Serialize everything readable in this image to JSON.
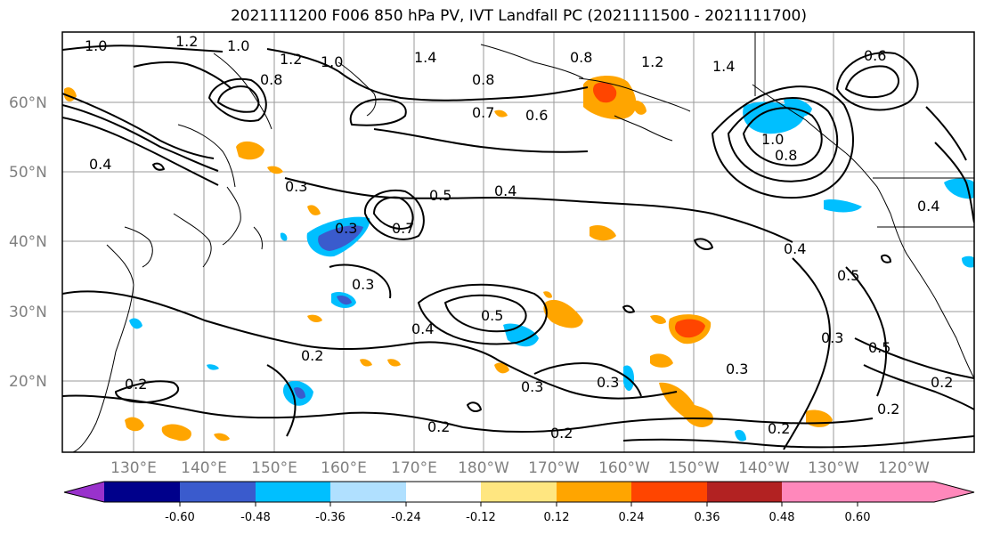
{
  "title": "2021111200 F006 850 hPa PV, IVT Landfall PC (2021111500 - 2021111700)",
  "lat_labels": [
    "60°N",
    "50°N",
    "40°N",
    "30°N",
    "20°N"
  ],
  "lon_labels": [
    "130°E",
    "140°E",
    "150°E",
    "160°E",
    "170°E",
    "180°W",
    "170°W",
    "160°W",
    "150°W",
    "140°W",
    "130°W",
    "120°W"
  ],
  "contour_labels": [
    "1.0",
    "1.2",
    "1.0",
    "1.2",
    "1.0",
    "0.8",
    "1.4",
    "0.8",
    "0.7",
    "0.6",
    "0.8",
    "0.4",
    "0.3",
    "0.5",
    "0.7",
    "0.3",
    "0.4",
    "0.5",
    "0.3",
    "0.2",
    "0.4",
    "0.2",
    "0.2",
    "0.3",
    "0.3",
    "0.2",
    "0.2",
    "1.4",
    "1.0",
    "0.8",
    "0.4",
    "0.4",
    "0.5",
    "0.3",
    "0.3",
    "0.5",
    "0.6",
    "0.2",
    "0.2",
    "1.2"
  ],
  "colorbar": {
    "ticks": [
      "-0.60",
      "-0.48",
      "-0.36",
      "-0.24",
      "-0.12",
      "0.12",
      "0.24",
      "0.36",
      "0.48",
      "0.60"
    ],
    "colors": [
      "#9932cc",
      "#00008b",
      "#3a5bcd",
      "#00bfff",
      "#b0e0ff",
      "#ffffff",
      "#ffe680",
      "#ffa500",
      "#ff4500",
      "#b22222",
      "#ff88bb"
    ]
  }
}
